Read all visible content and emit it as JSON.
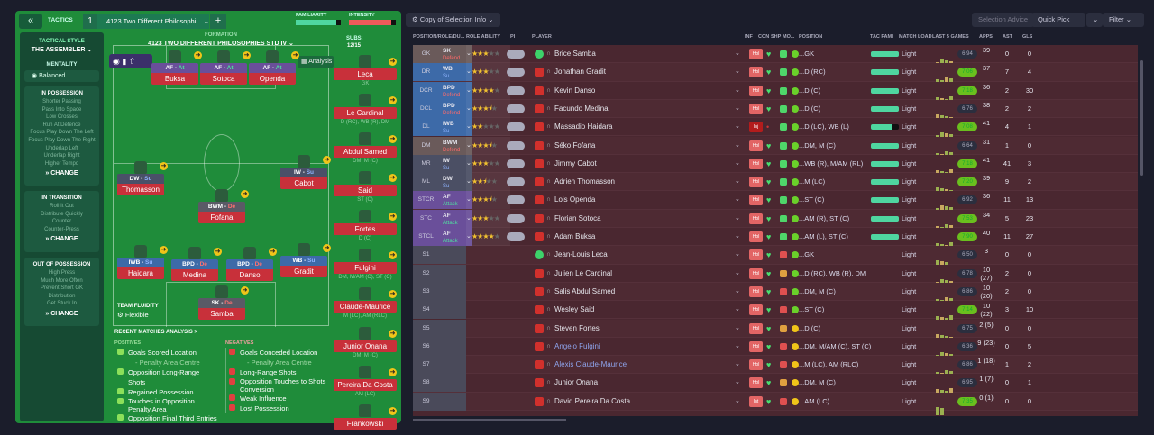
{
  "tactics": {
    "back_icon": "double-chevron-left-icon",
    "label": "TACTICS",
    "slot": "1",
    "name": "4123 Two Different Philosophi...",
    "add": "+",
    "familiarity_label": "FAMILIARITY",
    "familiarity": 0.9,
    "intensity_label": "INTENSITY",
    "intensity": 0.9
  },
  "sidebar": {
    "style_label": "TACTICAL STYLE",
    "style": "THE ASSEMBLER",
    "mentality_label": "MENTALITY",
    "mentality": "Balanced",
    "in_possession": {
      "title": "IN POSSESSION",
      "items": [
        "Shorter Passing",
        "Pass Into Space",
        "Low Crosses",
        "Run At Defence",
        "Focus Play Down The Left",
        "Focus Play Down The Right",
        "Underlap Left",
        "Underlap Right",
        "Higher Tempo"
      ],
      "change": "CHANGE"
    },
    "in_transition": {
      "title": "IN TRANSITION",
      "items": [
        "Roll It Out",
        "Distribute Quickly",
        "Counter",
        "Counter-Press"
      ],
      "change": "CHANGE"
    },
    "out_of_possession": {
      "title": "OUT OF POSSESSION",
      "items": [
        "High Press",
        "Much More Often",
        "Prevent Short GK",
        "Distribution",
        "Get Stuck In"
      ],
      "change": "CHANGE"
    }
  },
  "formation": {
    "label": "FORMATION",
    "name": "4123 TWO DIFFERENT PHILOSOPHIES STD IV",
    "analysis": "Analysis",
    "subs_label": "SUBS:",
    "subs": "12/15",
    "fluidity_label": "TEAM FLUIDITY",
    "fluidity": "Flexible",
    "players": [
      {
        "role": "AF",
        "duty": "At",
        "name": "Buksa"
      },
      {
        "role": "AF",
        "duty": "At",
        "name": "Sotoca"
      },
      {
        "role": "AF",
        "duty": "At",
        "name": "Openda"
      },
      {
        "role": "DW",
        "duty": "Su",
        "name": "Thomasson"
      },
      {
        "role": "IW",
        "duty": "Su",
        "name": "Cabot"
      },
      {
        "role": "BWM",
        "duty": "De",
        "name": "Fofana"
      },
      {
        "role": "IWB",
        "duty": "Su",
        "name": "Haidara"
      },
      {
        "role": "BPD",
        "duty": "De",
        "name": "Medina"
      },
      {
        "role": "BPD",
        "duty": "De",
        "name": "Danso"
      },
      {
        "role": "WB",
        "duty": "Su",
        "name": "Gradit"
      },
      {
        "role": "SK",
        "duty": "De",
        "name": "Samba"
      }
    ],
    "subs_list": [
      {
        "name": "Leca",
        "pos": "GK"
      },
      {
        "name": "Le Cardinal",
        "pos": "D (RC), WB (R), DM"
      },
      {
        "name": "Abdul Samed",
        "pos": "DM, M (C)"
      },
      {
        "name": "Said",
        "pos": "ST (C)"
      },
      {
        "name": "Fortes",
        "pos": "D (C)"
      },
      {
        "name": "Fulgini",
        "pos": "DM, M/AM (C), ST (C)"
      },
      {
        "name": "Claude-Maurice",
        "pos": "M (LC), AM (RLC)"
      },
      {
        "name": "Junior Onana",
        "pos": "DM, M (C)"
      },
      {
        "name": "Pereira Da Costa",
        "pos": "AM (LC)"
      },
      {
        "name": "Frankowski",
        "pos": ""
      }
    ]
  },
  "analysis": {
    "title": "RECENT MATCHES ANALYSIS >",
    "positives_label": "POSITIVES",
    "negatives_label": "NEGATIVES",
    "positives": [
      "Goals Scored Location",
      "- Penalty Area Centre",
      "Opposition Long-Range Shots",
      "Regained Possession",
      "Touches in Opposition Penalty Area",
      "Opposition Final Third Entries"
    ],
    "negatives": [
      "Goals Conceded Location",
      "- Penalty Area Centre",
      "Long-Range Shots",
      "Opposition Touches to Shots Conversion",
      "Weak Influence",
      "Lost Possession"
    ]
  },
  "toolbar": {
    "view": "Copy of Selection Info",
    "advice": "Selection Advice",
    "quick_pick": "Quick Pick",
    "filter": "Filter"
  },
  "columns": [
    "POSITION/ROLE/DU...",
    "ROLE ABILITY",
    "PI",
    "PLAYER",
    "INF",
    "CON",
    "SHP",
    "MO...",
    "POSITION",
    "TAC FAMI",
    "MATCH LOAD",
    "LAST 5 GAMES",
    "APPS",
    "AST",
    "GLS"
  ],
  "rows": [
    {
      "pos": "GK",
      "role": "SK",
      "duty": "Defend",
      "stars": 3,
      "name": "Brice Samba",
      "gk": true,
      "inf": "Hol",
      "p": "...GK",
      "tf": 1,
      "load": "Light",
      "rating": "6.94",
      "apps": "39",
      "ast": "0",
      "gls": "0"
    },
    {
      "pos": "DR",
      "role": "WB",
      "duty": "Su",
      "stars": 3,
      "name": "Jonathan Gradit",
      "inf": "Hol",
      "p": "...D (RC)",
      "tf": 1,
      "load": "Light",
      "rating": "7.06",
      "apps": "37",
      "ast": "7",
      "gls": "4"
    },
    {
      "pos": "DCR",
      "role": "BPD",
      "duty": "Defend",
      "stars": 4,
      "name": "Kevin Danso",
      "inf": "Hol",
      "p": "...D (C)",
      "tf": 1,
      "load": "Light",
      "rating": "7.18",
      "apps": "36",
      "ast": "2",
      "gls": "30"
    },
    {
      "pos": "DCL",
      "role": "BPD",
      "duty": "Defend",
      "stars": 3.5,
      "name": "Facundo Medina",
      "inf": "Hol",
      "p": "...D (C)",
      "tf": 1,
      "load": "Light",
      "rating": "6.76",
      "apps": "38",
      "ast": "2",
      "gls": "2"
    },
    {
      "pos": "DL",
      "role": "IWB",
      "duty": "Su",
      "stars": 2,
      "name": "Massadio Haidara",
      "inf": "Inj",
      "p": "...D (LC), WB (L)",
      "tf": 0.75,
      "load": "Light",
      "rating": "7.08",
      "apps": "41",
      "ast": "4",
      "gls": "1"
    },
    {
      "pos": "DM",
      "role": "BWM",
      "duty": "Defend",
      "stars": 3.5,
      "name": "Séko Fofana",
      "inf": "Hol",
      "p": "...DM, M (C)",
      "tf": 1,
      "load": "Light",
      "rating": "6.64",
      "apps": "31",
      "ast": "1",
      "gls": "0"
    },
    {
      "pos": "MR",
      "role": "IW",
      "duty": "Su",
      "stars": 3,
      "name": "Jimmy Cabot",
      "inf": "Hol",
      "p": "...WB (R), M/AM (RL)",
      "tf": 1,
      "load": "Light",
      "rating": "7.18",
      "apps": "41",
      "ast": "41",
      "gls": "3"
    },
    {
      "pos": "ML",
      "role": "DW",
      "duty": "Su",
      "stars": 2.5,
      "name": "Adrien Thomasson",
      "inf": "Hol",
      "p": "...M (LC)",
      "tf": 1,
      "load": "Light",
      "rating": "7.20",
      "apps": "39",
      "ast": "9",
      "gls": "2"
    },
    {
      "pos": "STCR",
      "role": "AF",
      "duty": "Attack",
      "stars": 3.5,
      "name": "Lois Openda",
      "inf": "Hol",
      "p": "...ST (C)",
      "tf": 1,
      "load": "Light",
      "rating": "6.92",
      "apps": "36",
      "ast": "11",
      "gls": "13"
    },
    {
      "pos": "STC",
      "role": "AF",
      "duty": "Attack",
      "stars": 3,
      "name": "Florian Sotoca",
      "inf": "Hol",
      "p": "...AM (R), ST (C)",
      "tf": 1,
      "load": "Light",
      "rating": "7.53",
      "apps": "34",
      "ast": "5",
      "gls": "23"
    },
    {
      "pos": "STCL",
      "role": "AF",
      "duty": "Attack",
      "stars": 4,
      "name": "Adam Buksa",
      "inf": "Hol",
      "p": "...AM (L), ST (C)",
      "tf": 1,
      "load": "Light",
      "rating": "7.90",
      "apps": "40",
      "ast": "11",
      "gls": "27"
    },
    {
      "pos": "S1",
      "name": "Jean-Louis Leca",
      "gk": true,
      "inf": "Hol",
      "p": "...GK",
      "load": "Light",
      "rating": "6.50",
      "apps": "3",
      "ast": "0",
      "gls": "0"
    },
    {
      "pos": "S2",
      "name": "Julien Le Cardinal",
      "inf": "Hol",
      "p": "...D (RC), WB (R), DM",
      "load": "Light",
      "rating": "6.78",
      "apps": "10 (27)",
      "ast": "2",
      "gls": "0"
    },
    {
      "pos": "S3",
      "name": "Salis Abdul Samed",
      "inf": "Hol",
      "p": "...DM, M (C)",
      "load": "Light",
      "rating": "6.86",
      "apps": "10 (20)",
      "ast": "2",
      "gls": "0"
    },
    {
      "pos": "S4",
      "name": "Wesley Said",
      "inf": "Hol",
      "p": "...ST (C)",
      "load": "Light",
      "rating": "7.14",
      "apps": "10 (22)",
      "ast": "3",
      "gls": "10"
    },
    {
      "pos": "S5",
      "name": "Steven Fortes",
      "inf": "Hol",
      "p": "...D (C)",
      "load": "Light",
      "rating": "6.75",
      "apps": "2 (5)",
      "ast": "0",
      "gls": "0"
    },
    {
      "pos": "S6",
      "name": "Angelo Fulgini",
      "loan": true,
      "inf": "Hol",
      "p": "...DM, M/AM (C), ST (C)",
      "load": "Light",
      "rating": "6.36",
      "apps": "9 (23)",
      "ast": "0",
      "gls": "5"
    },
    {
      "pos": "S7",
      "name": "Alexis Claude-Maurice",
      "loan": true,
      "inf": "Hol",
      "p": "...M (LC), AM (RLC)",
      "load": "Light",
      "rating": "6.86",
      "apps": "1 (18)",
      "ast": "1",
      "gls": "2"
    },
    {
      "pos": "S8",
      "name": "Junior Onana",
      "inf": "Hol",
      "p": "...DM, M (C)",
      "load": "Light",
      "rating": "6.95",
      "apps": "1 (7)",
      "ast": "0",
      "gls": "1"
    },
    {
      "pos": "S9",
      "name": "David Pereira Da Costa",
      "inf": "Int",
      "p": "...AM (LC)",
      "load": "Light",
      "rating": "7.35",
      "apps": "0 (1)",
      "ast": "0",
      "gls": "0"
    }
  ],
  "colors": {
    "panel": "#1f8c3a",
    "table": "#4a2730",
    "attack": "#6a4f9a",
    "defend": "#3d6aa8",
    "name_bar": "#c8303a"
  }
}
